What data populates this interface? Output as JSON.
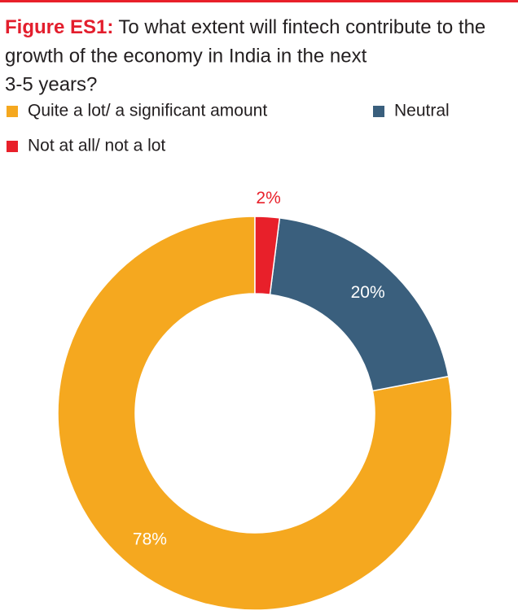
{
  "chart_data": {
    "type": "donut",
    "title_prefix": "Figure ES1:",
    "title": "To what extent will fintech contribute to the growth of the economy in India in the next 3-5 years?",
    "categories": [
      "Quite a lot/ a significant amount",
      "Neutral",
      "Not at all/ not a lot"
    ],
    "values": [
      78,
      20,
      2
    ],
    "value_labels": [
      "78%",
      "20%",
      "2%"
    ],
    "colors": [
      "#f5a81f",
      "#3a5f7d",
      "#e8202a"
    ],
    "startangle": 90,
    "counterclock": true,
    "legend": "top"
  }
}
